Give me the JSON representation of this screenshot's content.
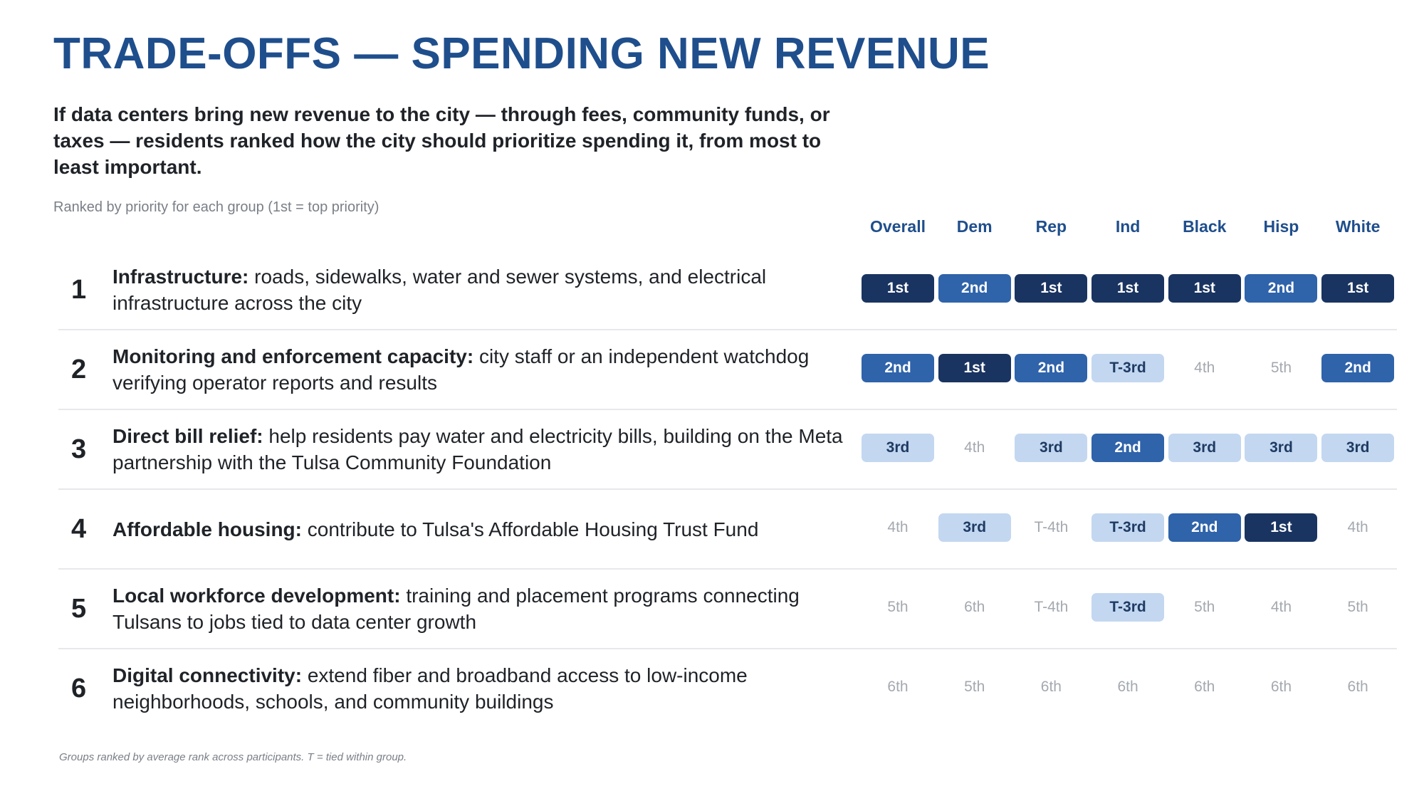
{
  "title": "TRADE-OFFS — SPENDING NEW REVENUE",
  "subtitle": "If data centers bring new revenue to the city — through fees, community funds, or taxes — residents ranked how the city should prioritize spending it, from most to least important.",
  "note": "Ranked by priority for each group (1st = top priority)",
  "groups": [
    "Overall",
    "Dem",
    "Rep",
    "Ind",
    "Black",
    "Hisp",
    "White"
  ],
  "rows": [
    {
      "rank": "1",
      "label": "Infrastructure:",
      "text": " roads, sidewalks, water and sewer systems, and electrical infrastructure across the city",
      "cells": [
        {
          "value": "1st",
          "level": 1
        },
        {
          "value": "2nd",
          "level": 2
        },
        {
          "value": "1st",
          "level": 1
        },
        {
          "value": "1st",
          "level": 1
        },
        {
          "value": "1st",
          "level": 1
        },
        {
          "value": "2nd",
          "level": 2
        },
        {
          "value": "1st",
          "level": 1
        }
      ]
    },
    {
      "rank": "2",
      "label": "Monitoring and enforcement capacity:",
      "text": " city staff or an independent watchdog verifying operator reports and results",
      "cells": [
        {
          "value": "2nd",
          "level": 2
        },
        {
          "value": "1st",
          "level": 1
        },
        {
          "value": "2nd",
          "level": 2
        },
        {
          "value": "T-3rd",
          "level": 3
        },
        {
          "value": "4th",
          "level": 0
        },
        {
          "value": "5th",
          "level": 0
        },
        {
          "value": "2nd",
          "level": 2
        }
      ]
    },
    {
      "rank": "3",
      "label": "Direct bill relief:",
      "text": " help residents pay water and electricity bills, building on the Meta partnership with the Tulsa Community Foundation",
      "cells": [
        {
          "value": "3rd",
          "level": 3
        },
        {
          "value": "4th",
          "level": 0
        },
        {
          "value": "3rd",
          "level": 3
        },
        {
          "value": "2nd",
          "level": 2
        },
        {
          "value": "3rd",
          "level": 3
        },
        {
          "value": "3rd",
          "level": 3
        },
        {
          "value": "3rd",
          "level": 3
        }
      ]
    },
    {
      "rank": "4",
      "label": "Affordable housing: ",
      "text": "contribute to Tulsa's Affordable Housing Trust Fund",
      "cells": [
        {
          "value": "4th",
          "level": 0
        },
        {
          "value": "3rd",
          "level": 3
        },
        {
          "value": "T-4th",
          "level": 0
        },
        {
          "value": "T-3rd",
          "level": 3
        },
        {
          "value": "2nd",
          "level": 2
        },
        {
          "value": "1st",
          "level": 1
        },
        {
          "value": "4th",
          "level": 0
        }
      ]
    },
    {
      "rank": "5",
      "label": "Local workforce development:",
      "text": " training and placement programs connecting Tulsans to jobs tied to data center growth",
      "cells": [
        {
          "value": "5th",
          "level": 0
        },
        {
          "value": "6th",
          "level": 0
        },
        {
          "value": "T-4th",
          "level": 0
        },
        {
          "value": "T-3rd",
          "level": 3
        },
        {
          "value": "5th",
          "level": 0
        },
        {
          "value": "4th",
          "level": 0
        },
        {
          "value": "5th",
          "level": 0
        }
      ]
    },
    {
      "rank": "6",
      "label": "Digital connectivity:",
      "text": " extend fiber and broadband access to low-income neighborhoods, schools, and community buildings",
      "cells": [
        {
          "value": "6th",
          "level": 0
        },
        {
          "value": "5th",
          "level": 0
        },
        {
          "value": "6th",
          "level": 0
        },
        {
          "value": "6th",
          "level": 0
        },
        {
          "value": "6th",
          "level": 0
        },
        {
          "value": "6th",
          "level": 0
        },
        {
          "value": "6th",
          "level": 0
        }
      ]
    }
  ],
  "footnote": "Groups ranked by average rank across participants. T = tied within group.",
  "colors": {
    "title": "#1f4e8c",
    "rank_1st": "#1a3461",
    "rank_2nd": "#2f63aa",
    "rank_3rd": "#c3d7f0",
    "rank_lower_text": "#a4a9b0"
  }
}
